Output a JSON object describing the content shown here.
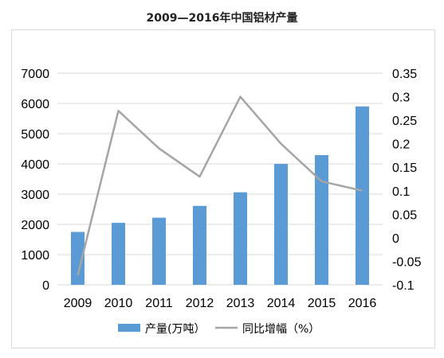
{
  "chart_data": {
    "type": "bar",
    "title": "2009—2016年中国铝材产量",
    "categories": [
      "2009",
      "2010",
      "2011",
      "2012",
      "2013",
      "2014",
      "2015",
      "2016"
    ],
    "series": [
      {
        "name": "产量(万吨）",
        "type": "bar",
        "axis": "left",
        "color": "#5b9bd5",
        "values": [
          1750,
          2050,
          2220,
          2610,
          3060,
          4000,
          4290,
          5900
        ]
      },
      {
        "name": "同比增幅（%）",
        "type": "line",
        "axis": "right",
        "color": "#a5a5a5",
        "values": [
          -0.08,
          0.27,
          0.19,
          0.13,
          0.3,
          0.2,
          0.12,
          0.1
        ]
      }
    ],
    "y_left": {
      "min": 0,
      "max": 7000,
      "ticks": [
        "0",
        "1000",
        "2000",
        "3000",
        "4000",
        "5000",
        "6000",
        "7000"
      ]
    },
    "y_right": {
      "min": -0.1,
      "max": 0.35,
      "ticks": [
        "-0.1",
        "-0.05",
        "0",
        "0.05",
        "0.1",
        "0.15",
        "0.2",
        "0.25",
        "0.3",
        "0.35"
      ]
    },
    "grid": true,
    "legend_position": "bottom"
  }
}
